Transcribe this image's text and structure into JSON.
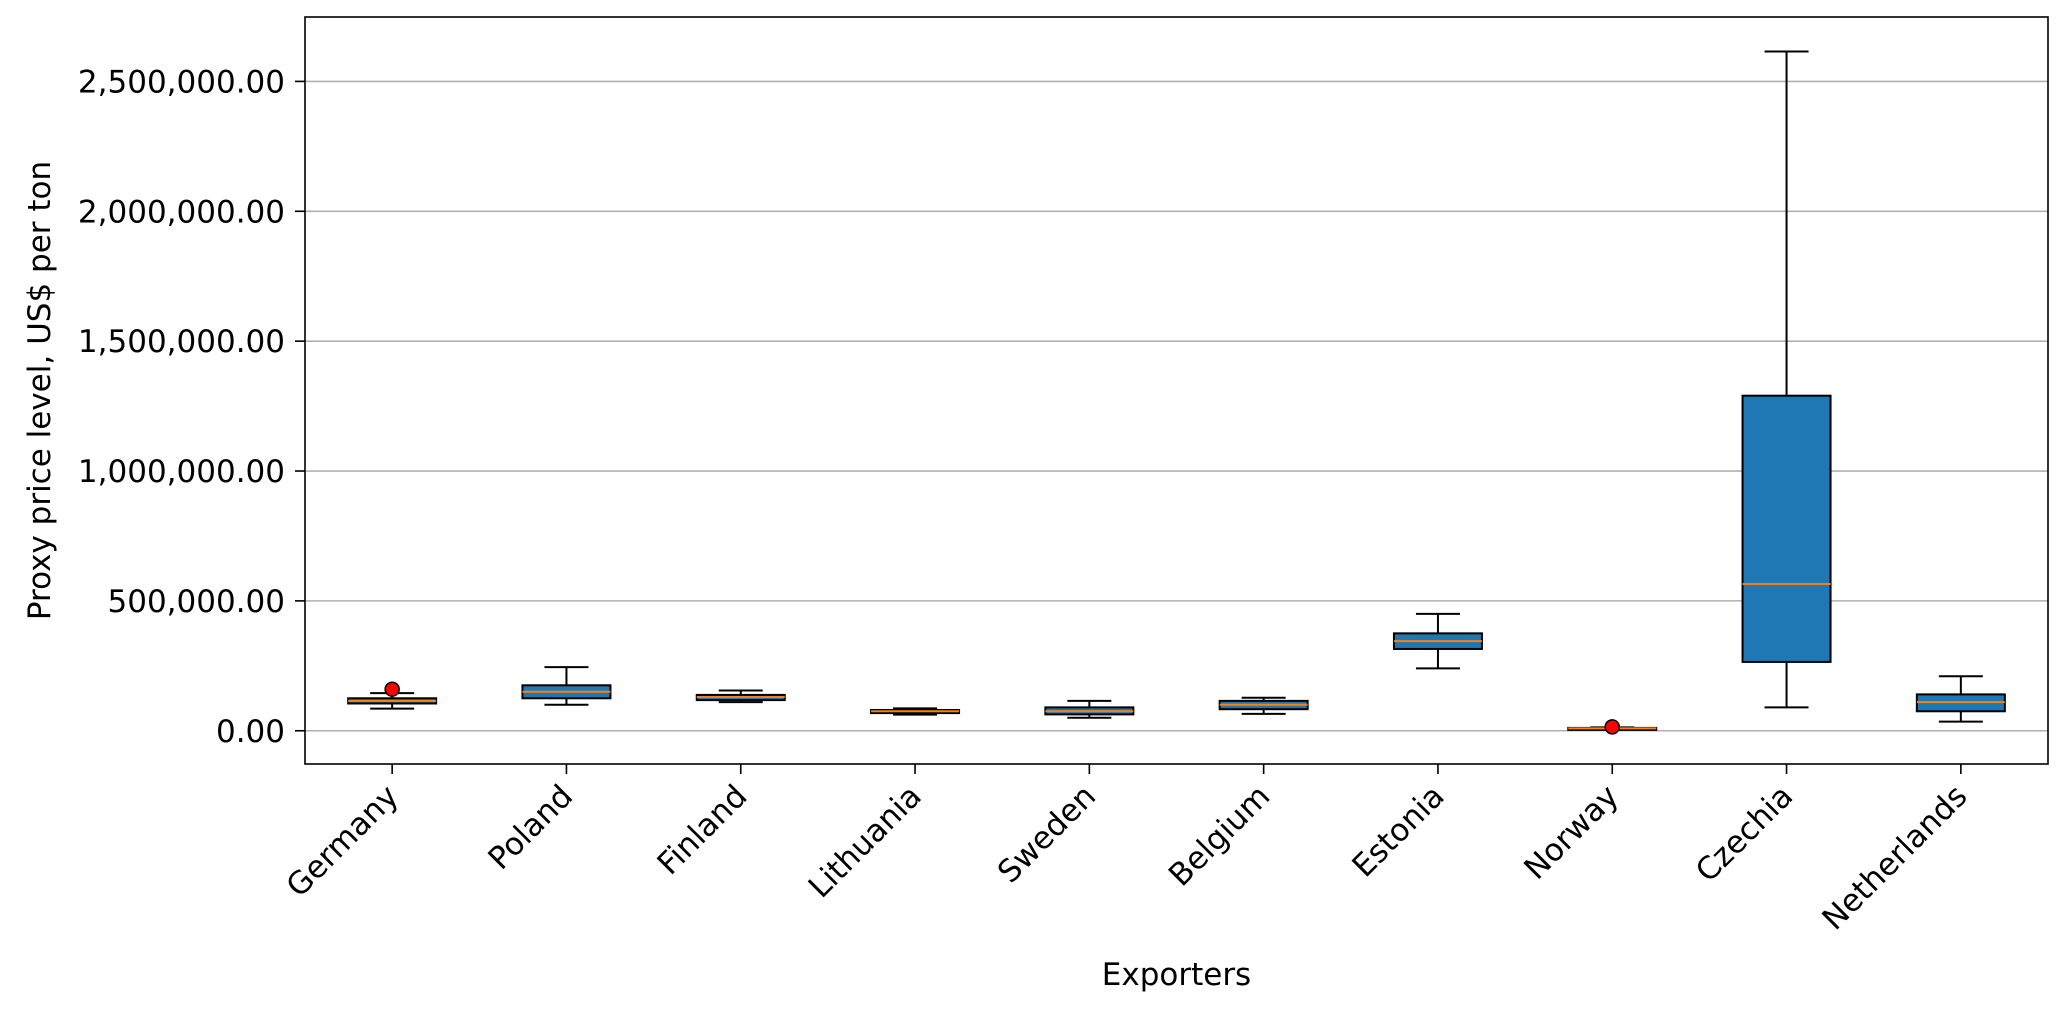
{
  "chart_data": {
    "type": "box",
    "title": "",
    "xlabel": "Exporters",
    "ylabel": "Proxy price level, US$ per ton",
    "categories": [
      "Germany",
      "Poland",
      "Finland",
      "Lithuania",
      "Sweden",
      "Belgium",
      "Estonia",
      "Norway",
      "Czechia",
      "Netherlands"
    ],
    "yticks": [
      0,
      500000,
      1000000,
      1500000,
      2000000,
      2500000
    ],
    "ytick_labels": [
      "0.00",
      "500,000.00",
      "1,000,000.00",
      "1,500,000.00",
      "2,000,000.00",
      "2,500,000.00"
    ],
    "ylim": [
      -128000,
      2748000
    ],
    "grid": "horizontal",
    "boxes": [
      {
        "category": "Germany",
        "whislo": 85000,
        "q1": 105000,
        "med": 115000,
        "q3": 125000,
        "whishi": 145000,
        "fliers": [
          160000
        ]
      },
      {
        "category": "Poland",
        "whislo": 100000,
        "q1": 125000,
        "med": 150000,
        "q3": 175000,
        "whishi": 245000,
        "fliers": []
      },
      {
        "category": "Finland",
        "whislo": 110000,
        "q1": 118000,
        "med": 130000,
        "q3": 138000,
        "whishi": 155000,
        "fliers": []
      },
      {
        "category": "Lithuania",
        "whislo": 62000,
        "q1": 68000,
        "med": 75000,
        "q3": 80000,
        "whishi": 86000,
        "fliers": []
      },
      {
        "category": "Sweden",
        "whislo": 50000,
        "q1": 63000,
        "med": 75000,
        "q3": 90000,
        "whishi": 115000,
        "fliers": []
      },
      {
        "category": "Belgium",
        "whislo": 65000,
        "q1": 83000,
        "med": 100000,
        "q3": 115000,
        "whishi": 127000,
        "fliers": []
      },
      {
        "category": "Estonia",
        "whislo": 240000,
        "q1": 315000,
        "med": 345000,
        "q3": 375000,
        "whishi": 450000,
        "fliers": []
      },
      {
        "category": "Norway",
        "whislo": 5000,
        "q1": 7000,
        "med": 9000,
        "q3": 11000,
        "whishi": 13000,
        "fliers": [
          15000
        ]
      },
      {
        "category": "Czechia",
        "whislo": 90000,
        "q1": 265000,
        "med": 565000,
        "q3": 1290000,
        "whishi": 2615000,
        "fliers": []
      },
      {
        "category": "Netherlands",
        "whislo": 35000,
        "q1": 75000,
        "med": 110000,
        "q3": 140000,
        "whishi": 210000,
        "fliers": []
      }
    ]
  },
  "colors": {
    "box_fill": "#1f77b4",
    "median": "#ff7f0e",
    "flier": "#ff0000",
    "grid": "#b0b0b0",
    "axes": "#000000"
  }
}
